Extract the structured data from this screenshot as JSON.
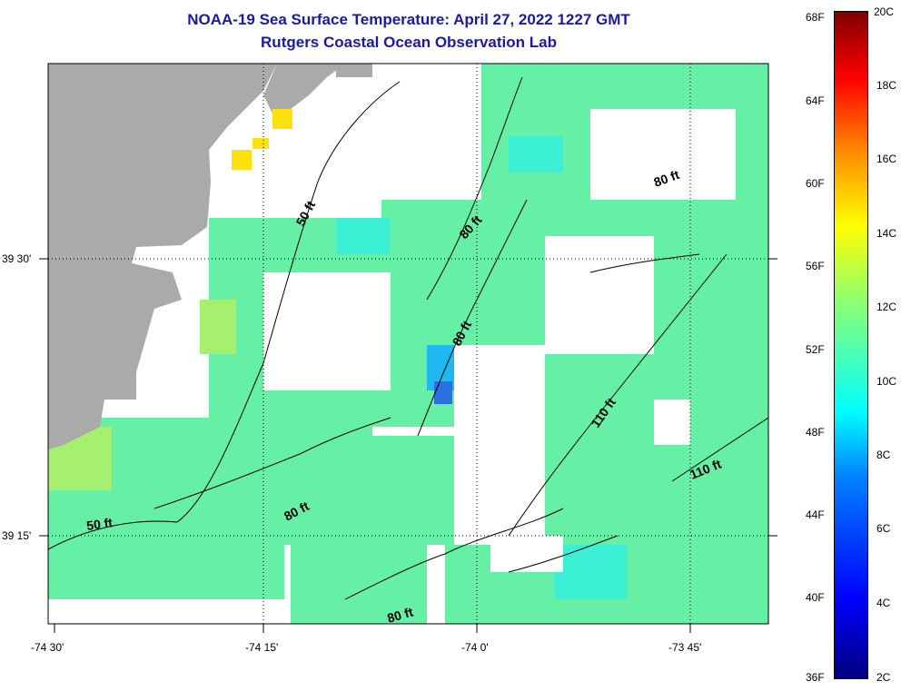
{
  "title": {
    "line1": "NOAA-19 Sea Surface Temperature:  April 27, 2022 1227 GMT",
    "line2": "Rutgers Coastal Ocean Observation Lab"
  },
  "axes": {
    "y_labels": [
      "39 30'",
      "39 15'"
    ],
    "x_labels": [
      "-74 30'",
      "-74 15'",
      "-74 0'",
      "-73 45'"
    ]
  },
  "contours": {
    "labels": [
      "50 ft",
      "50 ft",
      "80 ft",
      "80 ft",
      "80 ft",
      "80 ft",
      "80 ft",
      "110 ft",
      "110 ft"
    ]
  },
  "colorbar": {
    "fahrenheit": [
      "68F",
      "64F",
      "60F",
      "56F",
      "52F",
      "48F",
      "44F",
      "40F",
      "36F"
    ],
    "celsius": [
      "20C",
      "18C",
      "16C",
      "14C",
      "12C",
      "10C",
      "8C",
      "6C",
      "4C",
      "2C"
    ]
  },
  "colors": {
    "title": "#1a1aa6",
    "land": "#aaaaaa",
    "water_green": "#66f0a6",
    "water_cyan": "#3cf0d6",
    "water_cold": "#1fb8f0",
    "coldest": "#2a70e0",
    "warm": "#ffe010",
    "warm_green": "#a6f070"
  }
}
